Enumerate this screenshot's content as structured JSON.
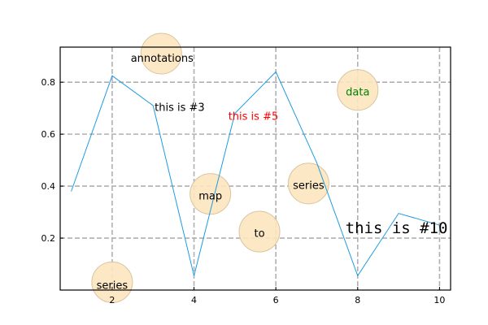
{
  "chart_data": {
    "type": "line",
    "title": "",
    "xlabel": "",
    "ylabel": "",
    "xlim": [
      0.73,
      10.27
    ],
    "ylim": [
      0.0,
      0.935
    ],
    "x_ticks": [
      2,
      4,
      6,
      8,
      10
    ],
    "x_tick_labels": [
      "2",
      "4",
      "6",
      "8",
      "10"
    ],
    "y_ticks": [
      0.2,
      0.4,
      0.6,
      0.8
    ],
    "y_tick_labels": [
      "0.2",
      "0.4",
      "0.6",
      "0.8"
    ],
    "grid": true,
    "grid_style": "dashed",
    "series": [
      {
        "color": "#1f9be0",
        "x": [
          1,
          2,
          3,
          4,
          5,
          6,
          7,
          8,
          9,
          10
        ],
        "y": [
          0.38,
          0.825,
          0.71,
          0.055,
          0.68,
          0.84,
          0.49,
          0.055,
          0.295,
          0.25
        ]
      }
    ],
    "bubbles": [
      {
        "x": 3.2,
        "y": 0.91
      },
      {
        "x": 2.0,
        "y": 0.03
      },
      {
        "x": 4.4,
        "y": 0.37
      },
      {
        "x": 5.6,
        "y": 0.225
      },
      {
        "x": 6.8,
        "y": 0.41
      },
      {
        "x": 8.0,
        "y": 0.77
      }
    ],
    "bubble_color": "#fde5bf",
    "annotations": [
      {
        "text": "annotations",
        "x": 3.22,
        "y": 0.895,
        "color": "#000000",
        "style": "normal"
      },
      {
        "text": "this is #3",
        "x": 3.65,
        "y": 0.705,
        "color": "#000000",
        "style": "normal"
      },
      {
        "text": "this is #5",
        "x": 5.45,
        "y": 0.67,
        "color": "#ff0000",
        "style": "normal"
      },
      {
        "text": "data",
        "x": 8.0,
        "y": 0.765,
        "color": "#008000",
        "style": "normal"
      },
      {
        "text": "map",
        "x": 4.4,
        "y": 0.365,
        "color": "#000000",
        "style": "normal"
      },
      {
        "text": "series",
        "x": 6.8,
        "y": 0.405,
        "color": "#000000",
        "style": "normal"
      },
      {
        "text": "to",
        "x": 5.6,
        "y": 0.22,
        "color": "#000000",
        "style": "normal"
      },
      {
        "text": "series",
        "x": 2.0,
        "y": 0.02,
        "color": "#000000",
        "style": "normal"
      },
      {
        "text": "this is #10",
        "x": 8.95,
        "y": 0.235,
        "color": "#000000",
        "style": "mono"
      }
    ]
  }
}
